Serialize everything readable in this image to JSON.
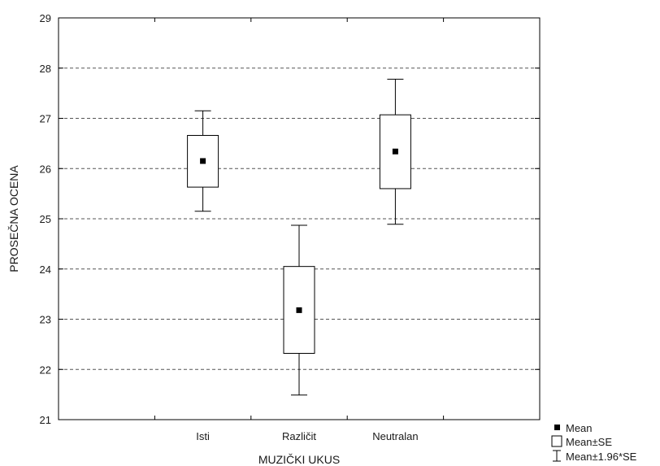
{
  "chart_data": {
    "type": "box",
    "xlabel": "MUZIČKI UKUS",
    "ylabel": "PROSEČNA OCENA",
    "ylim": [
      21,
      29
    ],
    "yticks": [
      21,
      22,
      23,
      24,
      25,
      26,
      27,
      28,
      29
    ],
    "grid": "horizontal dashed",
    "legend_position": "bottom-right",
    "categories": [
      "Isti",
      "Različit",
      "Neutralan"
    ],
    "series": [
      {
        "category": "Isti",
        "mean": 26.15,
        "se_low": 25.63,
        "se_high": 26.66,
        "ci_low": 25.15,
        "ci_high": 27.15
      },
      {
        "category": "Različit",
        "mean": 23.18,
        "se_low": 22.32,
        "se_high": 24.05,
        "ci_low": 21.49,
        "ci_high": 24.87
      },
      {
        "category": "Neutralan",
        "mean": 26.34,
        "se_low": 25.6,
        "se_high": 27.07,
        "ci_low": 24.89,
        "ci_high": 27.78
      }
    ],
    "legend": [
      {
        "symbol": "filled-square",
        "label": "Mean"
      },
      {
        "symbol": "open-box",
        "label": "Mean±SE"
      },
      {
        "symbol": "whisker",
        "label": "Mean±1.96*SE"
      }
    ]
  }
}
